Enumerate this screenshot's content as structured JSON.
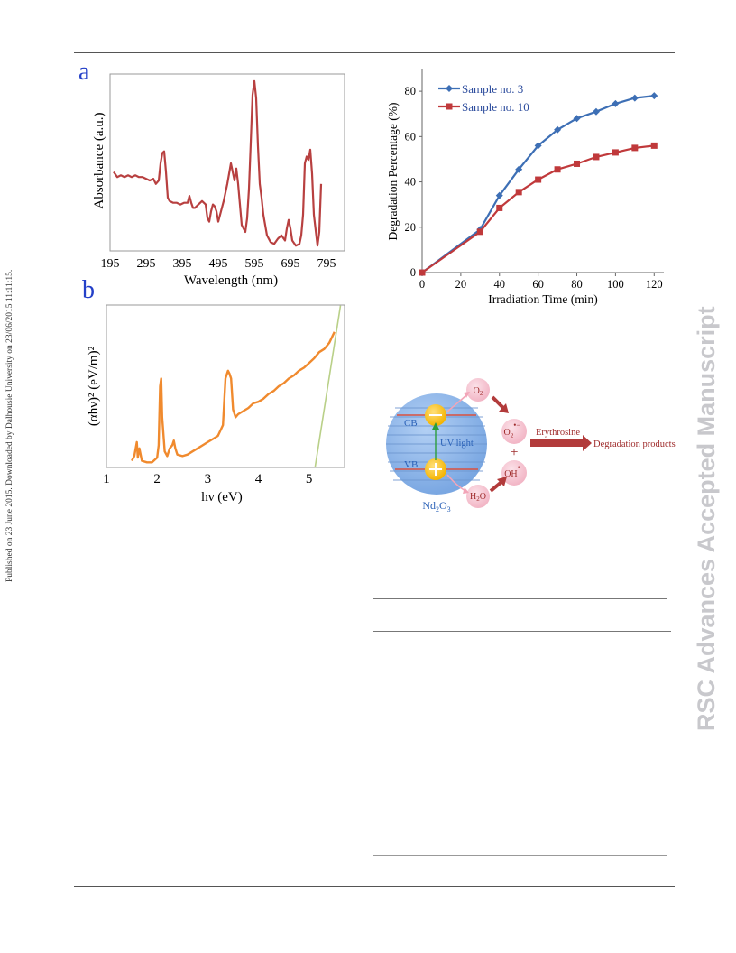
{
  "side_notes": {
    "left": "Published on 23 June 2015. Downloaded by Dalhousie University on 23/06/2015 11:11:15.",
    "right": "RSC Advances Accepted Manuscript"
  },
  "panel_labels": {
    "a": "a",
    "b": "b"
  },
  "chart_data": [
    {
      "type": "line",
      "id": "absorbance",
      "title": "",
      "xlabel": "Wavelength (nm)",
      "ylabel": "Absorbance (a.u.)",
      "x_ticks": [
        "195",
        "295",
        "395",
        "495",
        "595",
        "695",
        "795"
      ],
      "xlim": [
        195,
        845
      ],
      "ylim": [
        0,
        1
      ],
      "color": "#b84040",
      "series": [
        {
          "x": [
            205,
            215,
            225,
            235,
            245,
            255,
            265,
            275,
            285,
            295,
            305,
            315,
            322,
            330,
            335,
            340,
            345,
            350,
            355,
            360,
            370,
            380,
            390,
            400,
            410,
            415,
            420,
            425,
            430,
            440,
            450,
            460,
            465,
            470,
            475,
            480,
            485,
            490,
            495,
            500,
            505,
            510,
            515,
            520,
            525,
            530,
            535,
            540,
            545,
            550,
            560,
            570,
            575,
            580,
            585,
            590,
            595,
            600,
            605,
            610,
            615,
            620,
            630,
            640,
            650,
            660,
            670,
            680,
            685,
            690,
            695,
            700,
            710,
            720,
            725,
            730,
            735,
            740,
            745,
            750,
            755,
            760,
            770,
            775,
            780
          ],
          "values": [
            0.45,
            0.42,
            0.43,
            0.42,
            0.43,
            0.42,
            0.43,
            0.42,
            0.42,
            0.41,
            0.4,
            0.41,
            0.38,
            0.4,
            0.5,
            0.56,
            0.57,
            0.45,
            0.3,
            0.28,
            0.27,
            0.27,
            0.26,
            0.27,
            0.27,
            0.31,
            0.27,
            0.24,
            0.24,
            0.26,
            0.28,
            0.26,
            0.18,
            0.16,
            0.22,
            0.26,
            0.25,
            0.22,
            0.16,
            0.2,
            0.24,
            0.28,
            0.33,
            0.38,
            0.44,
            0.5,
            0.45,
            0.4,
            0.47,
            0.38,
            0.14,
            0.1,
            0.18,
            0.35,
            0.62,
            0.9,
            0.98,
            0.88,
            0.6,
            0.38,
            0.3,
            0.2,
            0.08,
            0.04,
            0.03,
            0.06,
            0.08,
            0.05,
            0.12,
            0.17,
            0.12,
            0.05,
            0.02,
            0.03,
            0.08,
            0.2,
            0.5,
            0.54,
            0.52,
            0.58,
            0.44,
            0.2,
            0.02,
            0.1,
            0.38
          ]
        }
      ]
    },
    {
      "type": "line",
      "id": "degradation",
      "title": "",
      "xlabel": "Irradiation Time (min)",
      "ylabel": "Degradation Percentage (%)",
      "xlim": [
        0,
        125
      ],
      "ylim": [
        0,
        90
      ],
      "x_ticks": [
        0,
        20,
        40,
        60,
        80,
        100,
        120
      ],
      "y_ticks": [
        0,
        20,
        40,
        60,
        80
      ],
      "legend": "top-left",
      "series": [
        {
          "name": "Sample no. 3",
          "color": "#3d6fb5",
          "marker": "diamond",
          "x": [
            0,
            30,
            40,
            50,
            60,
            70,
            80,
            90,
            100,
            110,
            120
          ],
          "values": [
            0,
            19,
            34,
            45.5,
            56,
            63,
            68,
            71,
            74.5,
            77,
            78
          ]
        },
        {
          "name": "Sample no. 10",
          "color": "#c0393b",
          "marker": "square",
          "x": [
            0,
            30,
            40,
            50,
            60,
            70,
            80,
            90,
            100,
            110,
            120
          ],
          "values": [
            0,
            18,
            28.5,
            35.5,
            41,
            45.5,
            48,
            51,
            53,
            55,
            56
          ]
        }
      ]
    },
    {
      "type": "line",
      "id": "tauc",
      "title": "",
      "xlabel": "hν (eV)",
      "ylabel": "(αhν)² (eV/m)²",
      "xlim": [
        1,
        5.7
      ],
      "ylim": [
        0,
        1
      ],
      "x_ticks": [
        1,
        2,
        3,
        4,
        5
      ],
      "series": [
        {
          "name": "",
          "color": "#f08a2e",
          "x": [
            1.5,
            1.55,
            1.6,
            1.62,
            1.65,
            1.7,
            1.8,
            1.9,
            2.0,
            2.03,
            2.06,
            2.08,
            2.1,
            2.15,
            2.2,
            2.25,
            2.3,
            2.33,
            2.36,
            2.4,
            2.5,
            2.6,
            2.7,
            2.8,
            2.9,
            3.0,
            3.1,
            3.2,
            3.3,
            3.35,
            3.4,
            3.43,
            3.46,
            3.5,
            3.55,
            3.6,
            3.7,
            3.8,
            3.9,
            4.0,
            4.1,
            4.2,
            4.3,
            4.4,
            4.5,
            4.6,
            4.7,
            4.8,
            4.9,
            5.0,
            5.1,
            5.2,
            5.3,
            5.4,
            5.5
          ],
          "values": [
            0.02,
            0.05,
            0.14,
            0.04,
            0.1,
            0.02,
            0.01,
            0.01,
            0.04,
            0.12,
            0.5,
            0.55,
            0.3,
            0.08,
            0.05,
            0.1,
            0.12,
            0.15,
            0.1,
            0.06,
            0.05,
            0.06,
            0.08,
            0.1,
            0.12,
            0.14,
            0.16,
            0.18,
            0.25,
            0.55,
            0.6,
            0.58,
            0.55,
            0.35,
            0.3,
            0.32,
            0.34,
            0.36,
            0.39,
            0.4,
            0.42,
            0.45,
            0.47,
            0.5,
            0.52,
            0.55,
            0.57,
            0.6,
            0.62,
            0.65,
            0.68,
            0.72,
            0.74,
            0.78,
            0.85
          ]
        },
        {
          "name": "",
          "color": "#b9d088",
          "x": [
            5.12,
            5.62
          ],
          "values": [
            -0.02,
            1.02
          ]
        }
      ]
    }
  ],
  "scheme": {
    "cb": "CB",
    "vb": "VB",
    "uv_light": "UV light",
    "o2": "O2",
    "o2_radical": "O2•−",
    "oh_radical": "OH•",
    "h2o": "H2O",
    "plus": "+",
    "erythrosine": "Erythrosine",
    "products": "Degradation products",
    "catalyst": "Nd2O3",
    "colors": {
      "sphere": "#8fb6ea",
      "particle": "#f8c11b",
      "bubble": "#f6c8d3",
      "arrow": "#b23b3b",
      "band_line": "#d9503e",
      "uv": "#2b9e3a",
      "label": "#9e2a2a",
      "band_text": "#2b62b8"
    }
  }
}
